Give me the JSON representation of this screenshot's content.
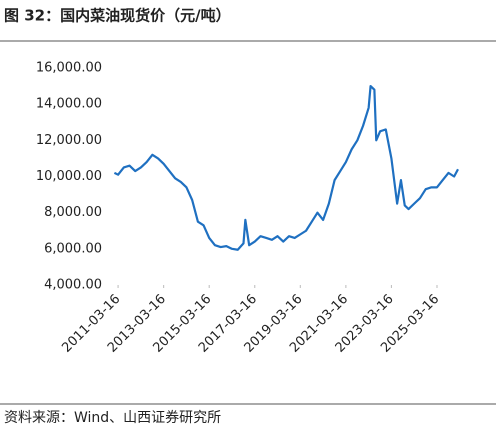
{
  "chart_data": {
    "type": "line",
    "title": "图 32：国内菜油现货价（元/吨）",
    "source": "资料来源：Wind、山西证券研究所",
    "x": [
      "2011-01-16",
      "2011-03-16",
      "2011-06-16",
      "2011-09-16",
      "2011-12-16",
      "2012-03-16",
      "2012-06-16",
      "2012-09-16",
      "2012-12-16",
      "2013-03-16",
      "2013-06-16",
      "2013-09-16",
      "2013-12-16",
      "2014-03-16",
      "2014-06-16",
      "2014-09-16",
      "2014-12-16",
      "2015-03-16",
      "2015-06-16",
      "2015-09-16",
      "2015-12-16",
      "2016-03-16",
      "2016-06-16",
      "2016-09-16",
      "2016-10-16",
      "2016-12-16",
      "2017-03-16",
      "2017-06-16",
      "2017-09-16",
      "2017-12-16",
      "2018-03-16",
      "2018-06-16",
      "2018-09-16",
      "2018-12-16",
      "2019-03-16",
      "2019-06-16",
      "2019-09-16",
      "2019-12-16",
      "2020-03-16",
      "2020-06-16",
      "2020-09-16",
      "2020-12-16",
      "2021-03-16",
      "2021-06-16",
      "2021-09-16",
      "2021-12-16",
      "2022-03-16",
      "2022-04-16",
      "2022-06-16",
      "2022-07-16",
      "2022-09-16",
      "2022-12-16",
      "2023-03-16",
      "2023-06-16",
      "2023-08-16",
      "2023-10-16",
      "2023-12-16",
      "2024-03-16",
      "2024-06-16",
      "2024-09-16",
      "2024-12-16",
      "2025-03-16",
      "2025-06-16",
      "2025-09-16",
      "2025-12-16",
      "2026-02-16"
    ],
    "series": [
      {
        "name": "国内菜油现货价",
        "color": "#1f70c1",
        "values": [
          10200,
          10100,
          10500,
          10600,
          10300,
          10500,
          10800,
          11200,
          11000,
          10700,
          10300,
          9900,
          9700,
          9400,
          8700,
          7500,
          7300,
          6600,
          6200,
          6100,
          6150,
          6000,
          5950,
          6300,
          7600,
          6200,
          6400,
          6700,
          6600,
          6500,
          6700,
          6400,
          6700,
          6600,
          6800,
          7000,
          7500,
          8000,
          7600,
          8500,
          9800,
          10300,
          10800,
          11500,
          12000,
          12800,
          13800,
          15000,
          14800,
          12000,
          12500,
          12600,
          11000,
          8500,
          9800,
          8400,
          8200,
          8500,
          8800,
          9300,
          9400,
          9400,
          9800,
          10200,
          10000,
          10400
        ]
      }
    ],
    "xlim": [
      "2011-01-16",
      "2026-02-16"
    ],
    "xticks": [
      "2011-03-16",
      "2013-03-16",
      "2015-03-16",
      "2017-03-16",
      "2019-03-16",
      "2021-03-16",
      "2023-03-16",
      "2025-03-16"
    ],
    "ylim": [
      4000,
      16000
    ],
    "yticks": [
      {
        "value": 4000,
        "label": "4,000.00"
      },
      {
        "value": 6000,
        "label": "6,000.00"
      },
      {
        "value": 8000,
        "label": "8,000.00"
      },
      {
        "value": 10000,
        "label": "10,000.00"
      },
      {
        "value": 12000,
        "label": "12,000.00"
      },
      {
        "value": 14000,
        "label": "14,000.00"
      },
      {
        "value": 16000,
        "label": "16,000.00"
      }
    ],
    "grid": false
  }
}
